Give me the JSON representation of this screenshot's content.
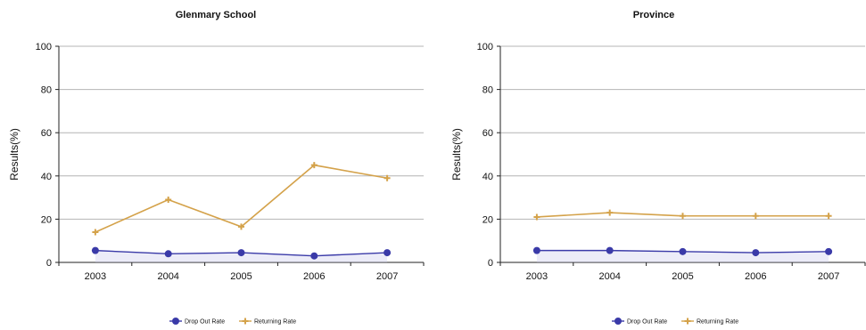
{
  "colors": {
    "drop": "#3a3aa8",
    "drop_fill": "#c8c8ec",
    "return": "#d4a24a",
    "grid": "#b4b4b4",
    "axis": "#222222"
  },
  "chart_data": [
    {
      "type": "line",
      "title": "Glenmary School",
      "ylabel": "Results(%)",
      "xlabel": "",
      "ylim": [
        0,
        100
      ],
      "yticks": [
        "0",
        "20",
        "40",
        "60",
        "80",
        "100"
      ],
      "categories": [
        "2003",
        "2004",
        "2005",
        "2006",
        "2007"
      ],
      "grid": true,
      "legend": "bottom",
      "series": [
        {
          "name": "Drop Out Rate",
          "values": [
            5.5,
            4,
            4.5,
            3,
            4.5
          ]
        },
        {
          "name": "Returning Rate",
          "values": [
            14,
            29,
            16.5,
            45,
            39
          ]
        }
      ]
    },
    {
      "type": "line",
      "title": "Province",
      "ylabel": "Results(%)",
      "xlabel": "",
      "ylim": [
        0,
        100
      ],
      "yticks": [
        "0",
        "20",
        "40",
        "60",
        "80",
        "100"
      ],
      "categories": [
        "2003",
        "2004",
        "2005",
        "2006",
        "2007"
      ],
      "grid": true,
      "legend": "bottom",
      "series": [
        {
          "name": "Drop Out Rate",
          "values": [
            5.5,
            5.5,
            5,
            4.5,
            5
          ]
        },
        {
          "name": "Returning Rate",
          "values": [
            21,
            23,
            21.5,
            21.5,
            21.5
          ]
        }
      ]
    }
  ]
}
